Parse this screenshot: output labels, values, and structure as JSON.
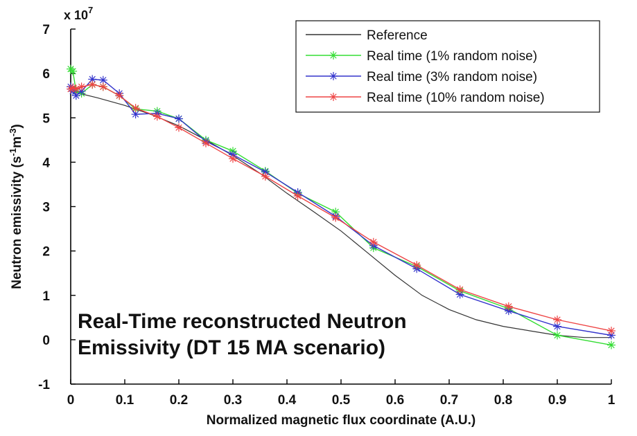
{
  "chart_data": {
    "type": "line",
    "title": "",
    "xlabel": "Normalized magnetic flux coordinate (A.U.)",
    "ylabel": {
      "prefix": "Neutron emissivity (s",
      "exp1": "-1",
      "mid": "m",
      "exp2": "-3",
      "suffix": ")"
    },
    "y_multiplier": {
      "base": "x 10",
      "exponent": "7"
    },
    "xlim": [
      0,
      1
    ],
    "ylim": [
      -1,
      7
    ],
    "xticks": [
      0,
      0.1,
      0.2,
      0.3,
      0.4,
      0.5,
      0.6,
      0.7,
      0.8,
      0.9,
      1
    ],
    "xtick_labels": [
      "0",
      "0.1",
      "0.2",
      "0.3",
      "0.4",
      "0.5",
      "0.6",
      "0.7",
      "0.8",
      "0.9",
      "1"
    ],
    "yticks": [
      -1,
      0,
      1,
      2,
      3,
      4,
      5,
      6,
      7
    ],
    "ytick_labels": [
      "-1",
      "0",
      "1",
      "2",
      "3",
      "4",
      "5",
      "6",
      "7"
    ],
    "grid": false,
    "legend_position": "top-right",
    "annotation": [
      "Real-Time reconstructed Neutron",
      "Emissivity (DT 15 MA scenario)"
    ],
    "series": [
      {
        "name": "Reference",
        "color": "#333333",
        "marker": "none",
        "x": [
          0,
          0.05,
          0.1,
          0.15,
          0.2,
          0.25,
          0.3,
          0.35,
          0.4,
          0.45,
          0.5,
          0.55,
          0.6,
          0.65,
          0.7,
          0.75,
          0.8,
          0.85,
          0.9,
          0.95,
          1
        ],
        "y": [
          5.6,
          5.45,
          5.28,
          5.07,
          4.82,
          4.5,
          4.15,
          3.75,
          3.3,
          2.88,
          2.45,
          1.95,
          1.45,
          1.0,
          0.68,
          0.45,
          0.3,
          0.2,
          0.1,
          0.05,
          0.05
        ]
      },
      {
        "name": "Real time (1% random noise)",
        "color": "#33dd33",
        "marker": "asterisk",
        "x": [
          0,
          0.004,
          0.01,
          0.02,
          0.04,
          0.06,
          0.09,
          0.12,
          0.16,
          0.2,
          0.25,
          0.3,
          0.36,
          0.42,
          0.49,
          0.56,
          0.64,
          0.72,
          0.81,
          0.9,
          1.0
        ],
        "y": [
          6.1,
          6.05,
          5.6,
          5.55,
          5.75,
          5.7,
          5.5,
          5.2,
          5.15,
          4.98,
          4.5,
          4.25,
          3.8,
          3.3,
          2.88,
          2.07,
          1.65,
          1.1,
          0.7,
          0.1,
          -0.12
        ]
      },
      {
        "name": "Real time (3% random noise)",
        "color": "#3333cc",
        "marker": "asterisk",
        "x": [
          0,
          0.004,
          0.01,
          0.02,
          0.04,
          0.06,
          0.09,
          0.12,
          0.16,
          0.2,
          0.25,
          0.3,
          0.36,
          0.42,
          0.49,
          0.56,
          0.64,
          0.72,
          0.81,
          0.9,
          1.0
        ],
        "y": [
          5.7,
          5.6,
          5.5,
          5.6,
          5.87,
          5.85,
          5.55,
          5.08,
          5.1,
          4.98,
          4.47,
          4.17,
          3.78,
          3.32,
          2.78,
          2.12,
          1.6,
          1.02,
          0.65,
          0.3,
          0.1
        ]
      },
      {
        "name": "Real time (10% random noise)",
        "color": "#ee4444",
        "marker": "asterisk",
        "x": [
          0,
          0.004,
          0.01,
          0.02,
          0.04,
          0.06,
          0.09,
          0.12,
          0.16,
          0.2,
          0.25,
          0.3,
          0.36,
          0.42,
          0.49,
          0.56,
          0.64,
          0.72,
          0.81,
          0.9,
          1.0
        ],
        "y": [
          5.65,
          5.68,
          5.65,
          5.7,
          5.75,
          5.7,
          5.5,
          5.22,
          5.03,
          4.78,
          4.43,
          4.08,
          3.68,
          3.24,
          2.75,
          2.2,
          1.68,
          1.13,
          0.75,
          0.45,
          0.2
        ]
      }
    ]
  }
}
